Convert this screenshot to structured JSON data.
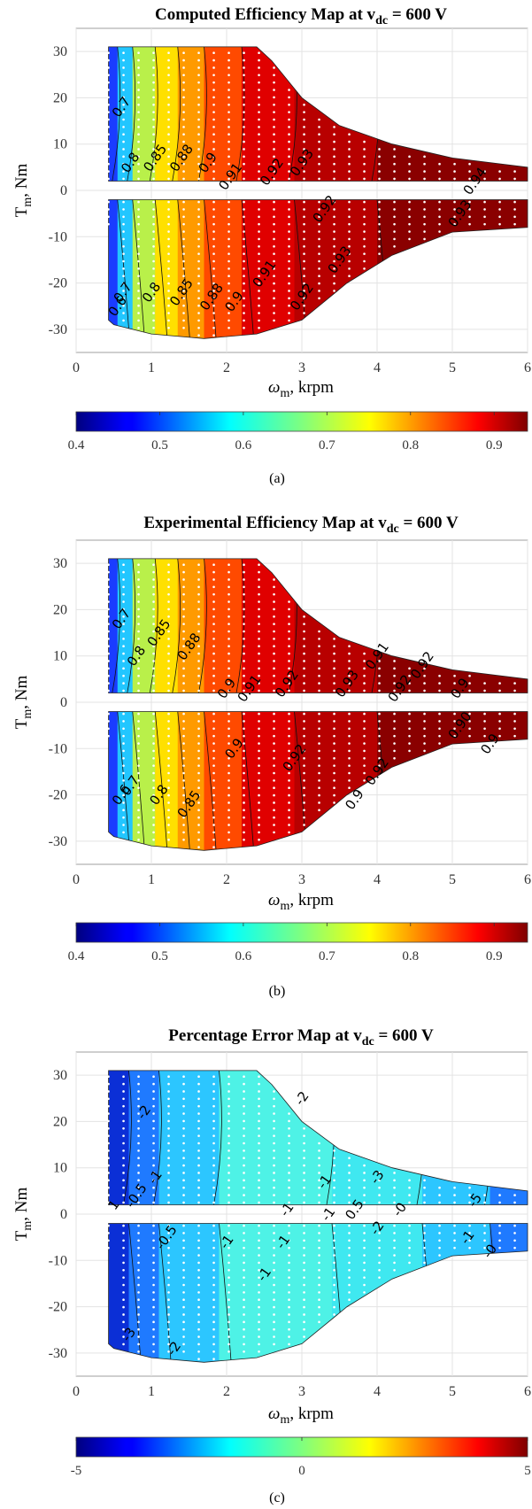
{
  "chart_data": [
    {
      "type": "heatmap",
      "panel_label": "(a)",
      "title": "Computed Efficiency Map at v",
      "title_sub": "dc",
      "title_tail": " = 600 V",
      "xlabel": "ω",
      "xlabel_sub": "m",
      "xlabel_tail": ", krpm",
      "ylabel": "T",
      "ylabel_sub": "m",
      "ylabel_tail": ", Nm",
      "xlim": [
        0,
        6
      ],
      "ylim": [
        -35,
        35
      ],
      "xticks": [
        "0",
        "1",
        "2",
        "3",
        "4",
        "5",
        "6"
      ],
      "yticks": [
        "-30",
        "-20",
        "-10",
        "0",
        "10",
        "20",
        "30"
      ],
      "grid": true,
      "colormap": "jet",
      "colorbar": {
        "range": [
          0.4,
          0.94
        ],
        "ticks": [
          "0.4",
          "0.5",
          "0.6",
          "0.7",
          "0.8",
          "0.9"
        ]
      },
      "contour_levels": [
        {
          "label": "0.7",
          "speed": 0.6,
          "torque": 18
        },
        {
          "label": "0.8",
          "speed": 0.72,
          "torque": 6
        },
        {
          "label": "0.85",
          "speed": 1.05,
          "torque": 7
        },
        {
          "label": "0.88",
          "speed": 1.4,
          "torque": 7
        },
        {
          "label": "0.9",
          "speed": 1.75,
          "torque": 6
        },
        {
          "label": "0.91",
          "speed": 2.05,
          "torque": 3
        },
        {
          "label": "0.92",
          "speed": 2.6,
          "torque": 4
        },
        {
          "label": "0.93",
          "speed": 3.0,
          "torque": 6
        },
        {
          "label": "0.94",
          "speed": 5.3,
          "torque": 2
        },
        {
          "label": "0.6",
          "speed": 0.55,
          "torque": -25
        },
        {
          "label": "0.7",
          "speed": 0.62,
          "torque": -22
        },
        {
          "label": "0.8",
          "speed": 1.0,
          "torque": -22
        },
        {
          "label": "0.85",
          "speed": 1.4,
          "torque": -22
        },
        {
          "label": "0.88",
          "speed": 1.8,
          "torque": -23
        },
        {
          "label": "0.9",
          "speed": 2.1,
          "torque": -24
        },
        {
          "label": "0.91",
          "speed": 2.5,
          "torque": -18
        },
        {
          "label": "0.92",
          "speed": 3.0,
          "torque": -23
        },
        {
          "label": "0.93",
          "speed": 3.5,
          "torque": -15
        },
        {
          "label": "0.92",
          "speed": 3.3,
          "torque": -4
        },
        {
          "label": "0.93",
          "speed": 5.1,
          "torque": -5
        }
      ]
    },
    {
      "type": "heatmap",
      "panel_label": "(b)",
      "title": "Experimental Efficiency Map at v",
      "title_sub": "dc",
      "title_tail": " = 600 V",
      "xlabel": "ω",
      "xlabel_sub": "m",
      "xlabel_tail": ", krpm",
      "ylabel": "T",
      "ylabel_sub": "m",
      "ylabel_tail": ", Nm",
      "xlim": [
        0,
        6
      ],
      "ylim": [
        -35,
        35
      ],
      "xticks": [
        "0",
        "1",
        "2",
        "3",
        "4",
        "5",
        "6"
      ],
      "yticks": [
        "-30",
        "-20",
        "-10",
        "0",
        "10",
        "20",
        "30"
      ],
      "grid": true,
      "colormap": "jet",
      "colorbar": {
        "range": [
          0.4,
          0.94
        ],
        "ticks": [
          "0.4",
          "0.5",
          "0.6",
          "0.7",
          "0.8",
          "0.9"
        ]
      },
      "contour_levels": [
        {
          "label": "0.7",
          "speed": 0.6,
          "torque": 18
        },
        {
          "label": "0.8",
          "speed": 0.8,
          "torque": 10
        },
        {
          "label": "0.85",
          "speed": 1.1,
          "torque": 15
        },
        {
          "label": "0.88",
          "speed": 1.5,
          "torque": 12
        },
        {
          "label": "0.9",
          "speed": 2.0,
          "torque": 3
        },
        {
          "label": "0.91",
          "speed": 2.3,
          "torque": 3
        },
        {
          "label": "0.92",
          "speed": 2.8,
          "torque": 4
        },
        {
          "label": "0.93",
          "speed": 3.6,
          "torque": 4
        },
        {
          "label": "0.92",
          "speed": 4.3,
          "torque": 3
        },
        {
          "label": "0.91",
          "speed": 4.0,
          "torque": 10
        },
        {
          "label": "0.92",
          "speed": 4.6,
          "torque": 8
        },
        {
          "label": "0.9",
          "speed": 5.1,
          "torque": 3
        },
        {
          "label": "0.6",
          "speed": 0.6,
          "torque": -20
        },
        {
          "label": "0.7",
          "speed": 0.72,
          "torque": -18
        },
        {
          "label": "0.8",
          "speed": 1.1,
          "torque": -20
        },
        {
          "label": "0.85",
          "speed": 1.5,
          "torque": -22
        },
        {
          "label": "0.9",
          "speed": 2.1,
          "torque": -10
        },
        {
          "label": "0.92",
          "speed": 2.9,
          "torque": -12
        },
        {
          "label": "0.92",
          "speed": 4.0,
          "torque": -15
        },
        {
          "label": "0.9",
          "speed": 3.7,
          "torque": -21
        },
        {
          "label": "0.90",
          "speed": 5.1,
          "torque": -5
        },
        {
          "label": "0.9",
          "speed": 5.5,
          "torque": -9
        }
      ]
    },
    {
      "type": "heatmap",
      "panel_label": "(c)",
      "title": "Percentage Error Map at v",
      "title_sub": "dc",
      "title_tail": " = 600 V",
      "xlabel": "ω",
      "xlabel_sub": "m",
      "xlabel_tail": ", krpm",
      "ylabel": "T",
      "ylabel_sub": "m",
      "ylabel_tail": ", Nm",
      "xlim": [
        0,
        6
      ],
      "ylim": [
        -35,
        35
      ],
      "xticks": [
        "0",
        "1",
        "2",
        "3",
        "4",
        "5",
        "6"
      ],
      "yticks": [
        "-30",
        "-20",
        "-10",
        "0",
        "10",
        "20",
        "30"
      ],
      "grid": true,
      "colormap": "jet",
      "colorbar": {
        "range": [
          -5,
          5
        ],
        "ticks": [
          "-5",
          "0",
          "5"
        ]
      },
      "contour_levels": [
        {
          "label": "-2",
          "speed": 0.9,
          "torque": 22
        },
        {
          "label": "-2",
          "speed": 3.0,
          "torque": 25
        },
        {
          "label": "-1",
          "speed": 1.05,
          "torque": 8
        },
        {
          "label": "-0.5",
          "speed": 0.8,
          "torque": 4
        },
        {
          "label": "1",
          "speed": 0.5,
          "torque": 2
        },
        {
          "label": "-1",
          "speed": 3.3,
          "torque": 7
        },
        {
          "label": "-1",
          "speed": 2.8,
          "torque": 1
        },
        {
          "label": "-3",
          "speed": 4.0,
          "torque": 8
        },
        {
          "label": "-1",
          "speed": 3.35,
          "torque": 0
        },
        {
          "label": "0.5",
          "speed": 3.7,
          "torque": 1
        },
        {
          "label": "-0",
          "speed": 4.3,
          "torque": 1
        },
        {
          "label": "-5",
          "speed": 5.3,
          "torque": 3
        },
        {
          "label": "-0.5",
          "speed": 1.2,
          "torque": -5
        },
        {
          "label": "-1",
          "speed": 2.0,
          "torque": -6
        },
        {
          "label": "-1",
          "speed": 2.75,
          "torque": -6
        },
        {
          "label": "-2",
          "speed": 4.0,
          "torque": -3
        },
        {
          "label": "-1",
          "speed": 2.5,
          "torque": -13
        },
        {
          "label": "-1",
          "speed": 5.2,
          "torque": -5
        },
        {
          "label": "-3",
          "speed": 0.7,
          "torque": -26
        },
        {
          "label": "-2",
          "speed": 1.3,
          "torque": -29
        },
        {
          "label": "-0",
          "speed": 5.5,
          "torque": -8
        }
      ]
    }
  ]
}
